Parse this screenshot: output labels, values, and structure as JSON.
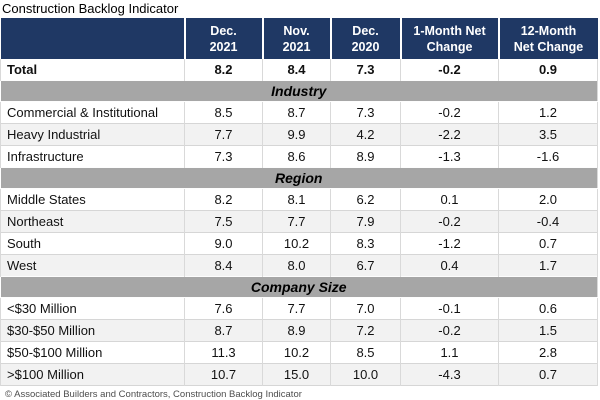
{
  "chart_data": {
    "type": "table",
    "title": "Construction Backlog Indicator",
    "columns": [
      {
        "label": "Dec. 2021",
        "line1": "Dec.",
        "line2": "2021"
      },
      {
        "label": "Nov. 2021",
        "line1": "Nov.",
        "line2": "2021"
      },
      {
        "label": "Dec. 2020",
        "line1": "Dec.",
        "line2": "2020"
      },
      {
        "label": "1-Month Net Change",
        "line1": "1-Month Net",
        "line2": "Change"
      },
      {
        "label": "12-Month Net Change",
        "line1": "12-Month",
        "line2": "Net Change"
      }
    ],
    "total_row": {
      "label": "Total",
      "values": [
        "8.2",
        "8.4",
        "7.3",
        "-0.2",
        "0.9"
      ]
    },
    "sections": [
      {
        "name": "Industry",
        "rows": [
          {
            "label": "Commercial & Institutional",
            "values": [
              "8.5",
              "8.7",
              "7.3",
              "-0.2",
              "1.2"
            ]
          },
          {
            "label": "Heavy Industrial",
            "values": [
              "7.7",
              "9.9",
              "4.2",
              "-2.2",
              "3.5"
            ]
          },
          {
            "label": "Infrastructure",
            "values": [
              "7.3",
              "8.6",
              "8.9",
              "-1.3",
              "-1.6"
            ]
          }
        ]
      },
      {
        "name": "Region",
        "rows": [
          {
            "label": "Middle States",
            "values": [
              "8.2",
              "8.1",
              "6.2",
              "0.1",
              "2.0"
            ]
          },
          {
            "label": "Northeast",
            "values": [
              "7.5",
              "7.7",
              "7.9",
              "-0.2",
              "-0.4"
            ]
          },
          {
            "label": "South",
            "values": [
              "9.0",
              "10.2",
              "8.3",
              "-1.2",
              "0.7"
            ]
          },
          {
            "label": "West",
            "values": [
              "8.4",
              "8.0",
              "6.7",
              "0.4",
              "1.7"
            ]
          }
        ]
      },
      {
        "name": "Company Size",
        "rows": [
          {
            "label": "<$30 Million",
            "values": [
              "7.6",
              "7.7",
              "7.0",
              "-0.1",
              "0.6"
            ]
          },
          {
            "label": "$30-$50 Million",
            "values": [
              "8.7",
              "8.9",
              "7.2",
              "-0.2",
              "1.5"
            ]
          },
          {
            "label": "$50-$100 Million",
            "values": [
              "11.3",
              "10.2",
              "8.5",
              "1.1",
              "2.8"
            ]
          },
          {
            "label": ">$100 Million",
            "values": [
              "10.7",
              "15.0",
              "10.0",
              "-4.3",
              "0.7"
            ]
          }
        ]
      }
    ],
    "footer": "© Associated Builders and Contractors, Construction Backlog Indicator"
  },
  "colors": {
    "header_bg": "#1F3864",
    "band_bg": "#A6A6A6",
    "alt_row_bg": "#F2F2F2"
  }
}
